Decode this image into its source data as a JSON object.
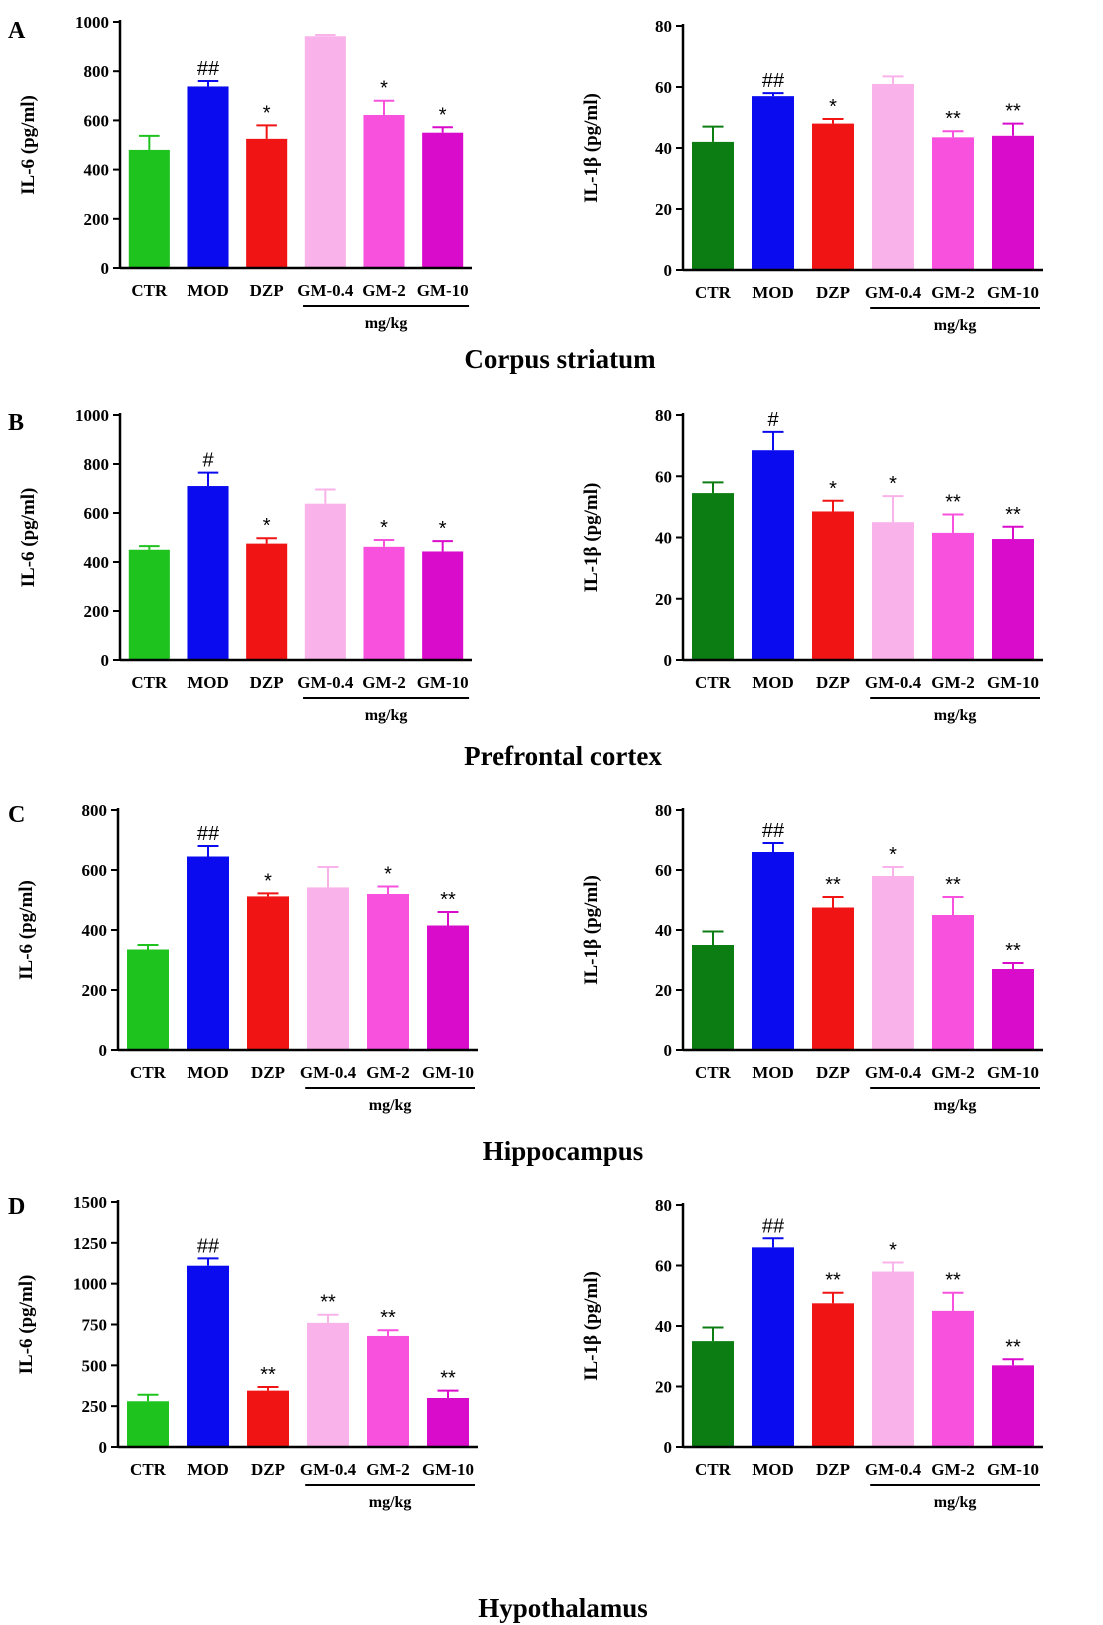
{
  "palette": {
    "CTR": "#1ec31e",
    "CTR_dark": "#0b7d12",
    "MOD": "#0b0bf0",
    "DZP": "#f01414",
    "GM-0.4": "#f9b2ea",
    "GM-2": "#f751de",
    "GM-10": "#d90ccb"
  },
  "regions": [
    {
      "letter": "A",
      "title": "Corpus striatum"
    },
    {
      "letter": "B",
      "title": "Prefrontal cortex"
    },
    {
      "letter": "C",
      "title": "Hippocampus"
    },
    {
      "letter": "D",
      "title": "Hypothalamus"
    }
  ],
  "chart_data": [
    {
      "type": "bar",
      "region": "Corpus striatum",
      "ylabel": "IL-6 (pg/ml)",
      "categories": [
        "CTR",
        "MOD",
        "DZP",
        "GM-0.4",
        "GM-2",
        "GM-10"
      ],
      "unit_label": "mg/kg",
      "ylim": [
        0,
        1000
      ],
      "yticks": [
        "0",
        "200",
        "400",
        "600",
        "800",
        "1000"
      ],
      "values": [
        480,
        738,
        525,
        942,
        622,
        550
      ],
      "errors": [
        57,
        22,
        55,
        5,
        58,
        22
      ],
      "annotations": [
        "",
        "##",
        "*",
        "",
        "*",
        "*"
      ]
    },
    {
      "type": "bar",
      "region": "Corpus striatum",
      "ylabel": "IL-1β (pg/ml)",
      "categories": [
        "CTR",
        "MOD",
        "DZP",
        "GM-0.4",
        "GM-2",
        "GM-10"
      ],
      "unit_label": "mg/kg",
      "ylim": [
        0,
        80
      ],
      "yticks": [
        "0",
        "20",
        "40",
        "60",
        "80"
      ],
      "values": [
        42,
        57,
        48,
        61,
        43.5,
        44
      ],
      "errors": [
        5,
        1,
        1.5,
        2.5,
        2,
        4
      ],
      "annotations": [
        "",
        "##",
        "*",
        "",
        "**",
        "**"
      ]
    },
    {
      "type": "bar",
      "region": "Prefrontal cortex",
      "ylabel": "IL-6 (pg/ml)",
      "categories": [
        "CTR",
        "MOD",
        "DZP",
        "GM-0.4",
        "GM-2",
        "GM-10"
      ],
      "unit_label": "mg/kg",
      "ylim": [
        0,
        1000
      ],
      "yticks": [
        "0",
        "200",
        "400",
        "600",
        "800",
        "1000"
      ],
      "values": [
        450,
        710,
        475,
        638,
        462,
        443
      ],
      "errors": [
        15,
        55,
        22,
        58,
        28,
        42
      ],
      "annotations": [
        "",
        "#",
        "*",
        "",
        "*",
        "*"
      ]
    },
    {
      "type": "bar",
      "region": "Prefrontal cortex",
      "ylabel": "IL-1β (pg/ml)",
      "categories": [
        "CTR",
        "MOD",
        "DZP",
        "GM-0.4",
        "GM-2",
        "GM-10"
      ],
      "unit_label": "mg/kg",
      "ylim": [
        0,
        80
      ],
      "yticks": [
        "0",
        "20",
        "40",
        "60",
        "80"
      ],
      "values": [
        54.5,
        68.5,
        48.5,
        45,
        41.5,
        39.5
      ],
      "errors": [
        3.5,
        6,
        3.5,
        8.5,
        6,
        4
      ],
      "annotations": [
        "",
        "#",
        "*",
        "*",
        "**",
        "**"
      ]
    },
    {
      "type": "bar",
      "region": "Hippocampus",
      "ylabel": "IL-6 (pg/ml)",
      "categories": [
        "CTR",
        "MOD",
        "DZP",
        "GM-0.4",
        "GM-2",
        "GM-10"
      ],
      "unit_label": "mg/kg",
      "ylim": [
        0,
        800
      ],
      "yticks": [
        "0",
        "200",
        "400",
        "600",
        "800"
      ],
      "values": [
        335,
        645,
        512,
        542,
        520,
        415
      ],
      "errors": [
        15,
        35,
        10,
        68,
        25,
        45
      ],
      "annotations": [
        "",
        "##",
        "*",
        "",
        "*",
        "**"
      ]
    },
    {
      "type": "bar",
      "region": "Hippocampus",
      "ylabel": "IL-1β (pg/ml)",
      "categories": [
        "CTR",
        "MOD",
        "DZP",
        "GM-0.4",
        "GM-2",
        "GM-10"
      ],
      "unit_label": "mg/kg",
      "ylim": [
        0,
        80
      ],
      "yticks": [
        "0",
        "20",
        "40",
        "60",
        "80"
      ],
      "values": [
        35,
        66,
        47.5,
        58,
        45,
        27
      ],
      "errors": [
        4.5,
        3,
        3.5,
        3,
        6,
        2
      ],
      "annotations": [
        "",
        "##",
        "**",
        "*",
        "**",
        "**"
      ]
    },
    {
      "type": "bar",
      "region": "Hypothalamus",
      "ylabel": "IL-6 (pg/ml)",
      "categories": [
        "CTR",
        "MOD",
        "DZP",
        "GM-0.4",
        "GM-2",
        "GM-10"
      ],
      "unit_label": "mg/kg",
      "ylim": [
        0,
        1500
      ],
      "yticks": [
        "0",
        "250",
        "500",
        "750",
        "1000",
        "1250",
        "1500"
      ],
      "values": [
        280,
        1110,
        345,
        760,
        680,
        300
      ],
      "errors": [
        40,
        45,
        22,
        50,
        35,
        45
      ],
      "annotations": [
        "",
        "##",
        "**",
        "**",
        "**",
        "**"
      ]
    },
    {
      "type": "bar",
      "region": "Hypothalamus",
      "ylabel": "IL-1β (pg/ml)",
      "categories": [
        "CTR",
        "MOD",
        "DZP",
        "GM-0.4",
        "GM-2",
        "GM-10"
      ],
      "unit_label": "mg/kg",
      "ylim": [
        0,
        80
      ],
      "yticks": [
        "0",
        "20",
        "40",
        "60",
        "80"
      ],
      "values": [
        35,
        66,
        47.5,
        58,
        45,
        27
      ],
      "errors": [
        4.5,
        3,
        3.5,
        3,
        6,
        2
      ],
      "annotations": [
        "",
        "##",
        "**",
        "*",
        "**",
        "**"
      ]
    }
  ]
}
